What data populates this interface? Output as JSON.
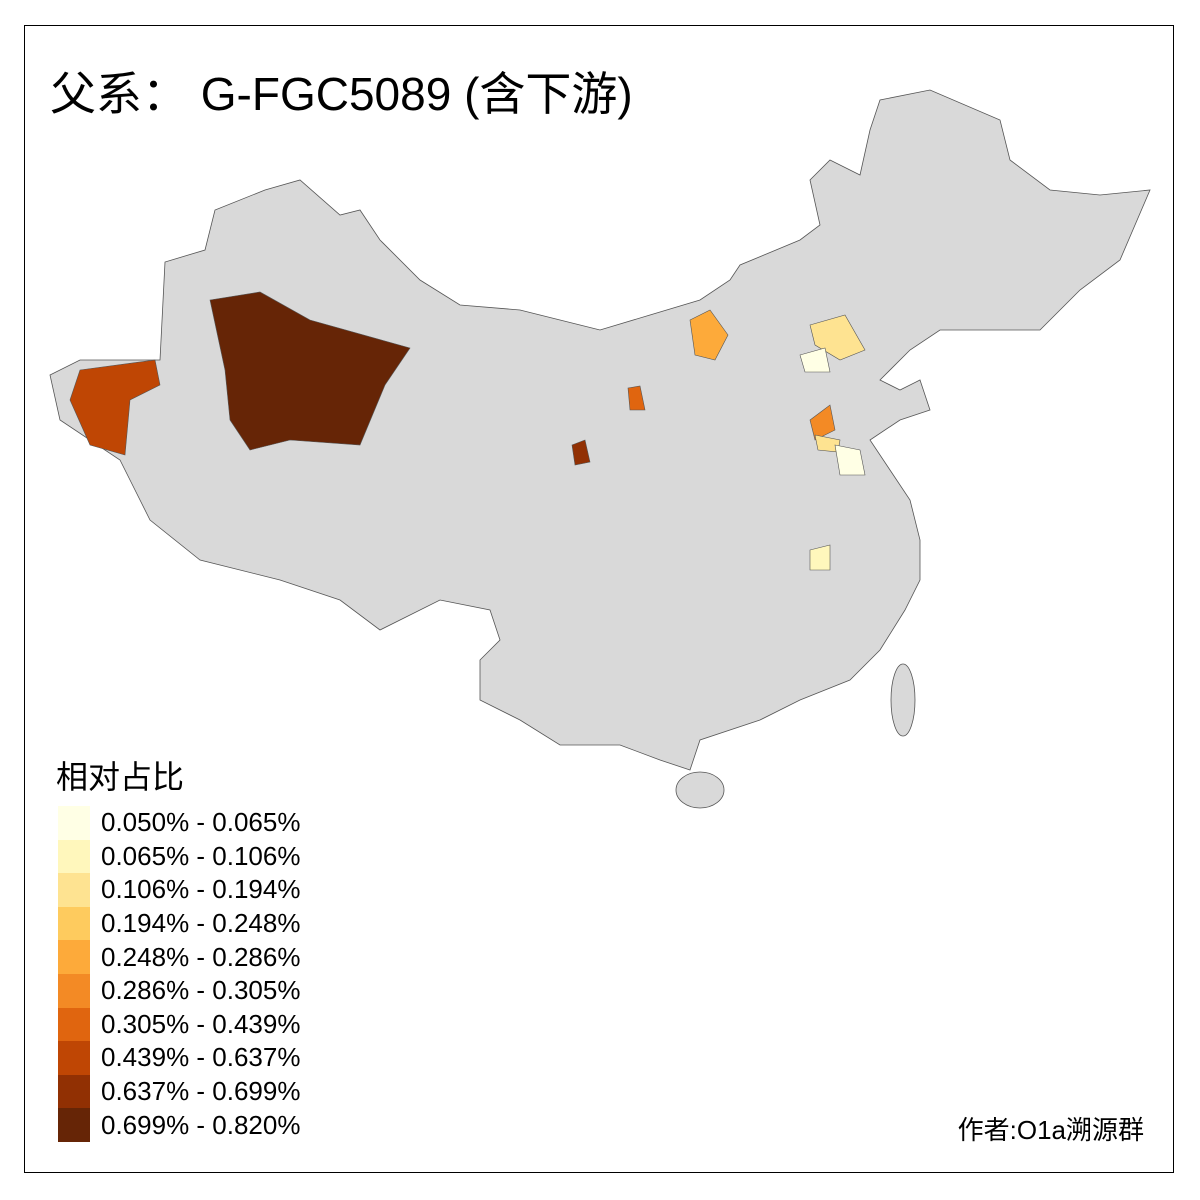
{
  "title": "父系： G-FGC5089 (含下游)",
  "legend": {
    "title": "相对占比",
    "items": [
      {
        "label": "0.050% - 0.065%",
        "color": "#FFFFE5"
      },
      {
        "label": "0.065% - 0.106%",
        "color": "#FFF7BC"
      },
      {
        "label": "0.106% - 0.194%",
        "color": "#FEE391"
      },
      {
        "label": "0.194% - 0.248%",
        "color": "#FECB5E"
      },
      {
        "label": "0.248% - 0.286%",
        "color": "#FDAA3A"
      },
      {
        "label": "0.286% - 0.305%",
        "color": "#F38A25"
      },
      {
        "label": "0.305% - 0.439%",
        "color": "#E0650F"
      },
      {
        "label": "0.439% - 0.637%",
        "color": "#BF4604"
      },
      {
        "label": "0.637% - 0.699%",
        "color": "#913003"
      },
      {
        "label": "0.699% - 0.820%",
        "color": "#662506"
      }
    ]
  },
  "base_color": "#D9D9D9",
  "credit": "作者:O1a溯源群"
}
